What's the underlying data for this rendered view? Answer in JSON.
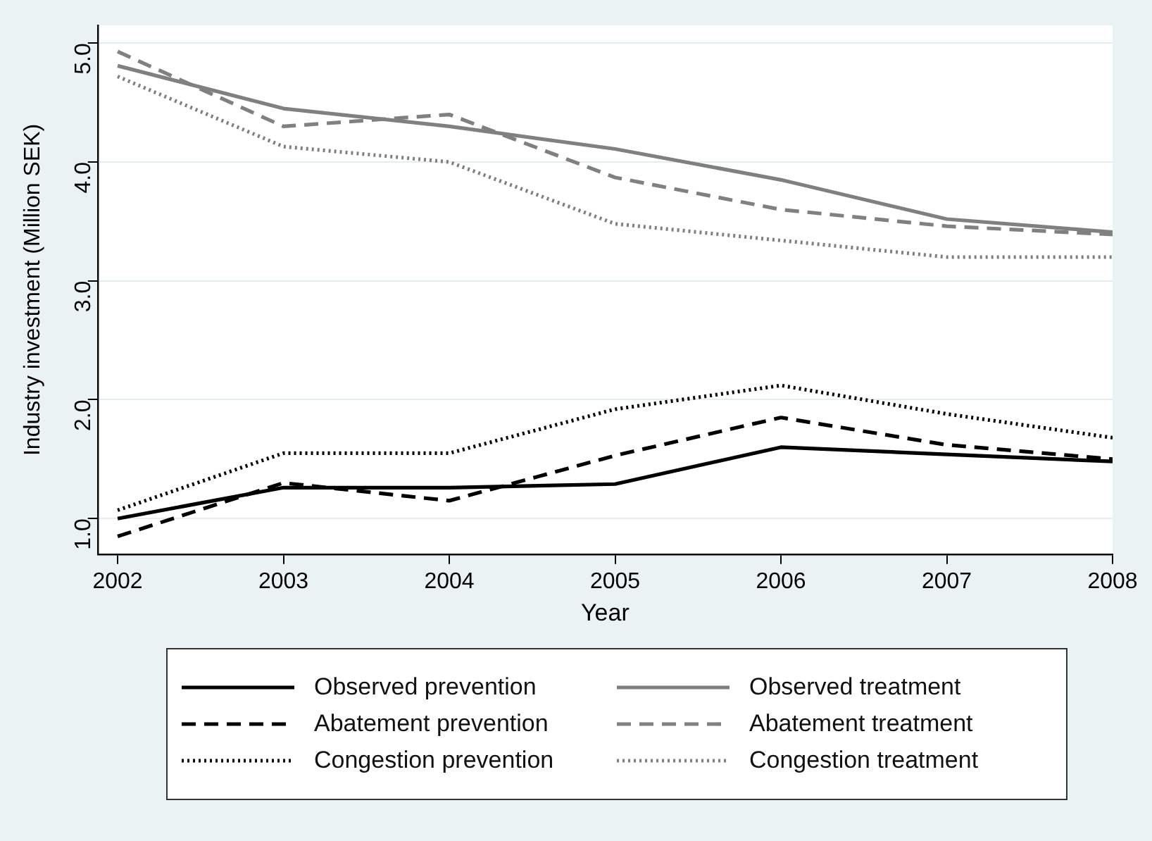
{
  "chart_data": {
    "type": "line",
    "xlabel": "Year",
    "ylabel": "Industry investment (Million SEK)",
    "x": [
      2002,
      2003,
      2004,
      2005,
      2006,
      2007,
      2008
    ],
    "xlim": [
      2001.88,
      2008
    ],
    "xticks": [
      2002,
      2003,
      2004,
      2005,
      2006,
      2007,
      2008
    ],
    "ylim": [
      0.7,
      5.15
    ],
    "yticks": [
      {
        "value": 1,
        "label": "1.0"
      },
      {
        "value": 2,
        "label": "2.0"
      },
      {
        "value": 3,
        "label": "3.0"
      },
      {
        "value": 4,
        "label": "4.0"
      },
      {
        "value": 5,
        "label": "5.0"
      }
    ],
    "grid": "y",
    "legend": "bottom",
    "marker": "none",
    "series": [
      {
        "name": "Observed prevention",
        "color": "#000000",
        "line_style": "solid",
        "values": [
          1.0,
          1.26,
          1.26,
          1.29,
          1.6,
          1.54,
          1.48
        ]
      },
      {
        "name": "Observed treatment",
        "color": "#808080",
        "line_style": "solid",
        "values": [
          4.81,
          4.45,
          4.3,
          4.11,
          3.85,
          3.52,
          3.41
        ]
      },
      {
        "name": "Abatement prevention",
        "color": "#000000",
        "line_style": "dashed",
        "values": [
          0.85,
          1.3,
          1.15,
          1.53,
          1.85,
          1.62,
          1.5
        ]
      },
      {
        "name": "Abatement treatment",
        "color": "#808080",
        "line_style": "dashed",
        "values": [
          4.93,
          4.3,
          4.4,
          3.87,
          3.6,
          3.46,
          3.39
        ]
      },
      {
        "name": "Congestion prevention",
        "color": "#000000",
        "line_style": "dotted",
        "values": [
          1.07,
          1.55,
          1.55,
          1.92,
          2.12,
          1.88,
          1.68
        ]
      },
      {
        "name": "Congestion treatment",
        "color": "#808080",
        "line_style": "dotted",
        "values": [
          4.72,
          4.13,
          4.0,
          3.48,
          3.34,
          3.2,
          3.2
        ]
      }
    ]
  }
}
